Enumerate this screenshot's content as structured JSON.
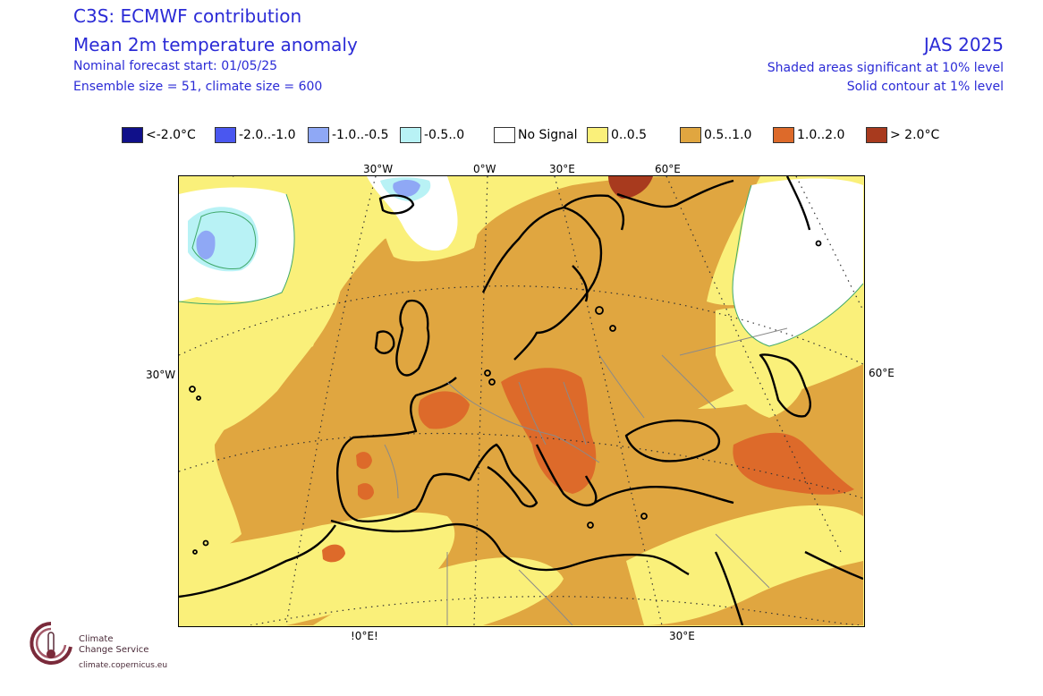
{
  "header": {
    "title": "C3S: ECMWF contribution",
    "subtitle": "Mean 2m temperature anomaly",
    "forecast_start": "Nominal forecast start: 01/05/25",
    "ensemble": "Ensemble size = 51, climate size = 600",
    "period": "JAS 2025",
    "significance_shaded": "Shaded areas significant at 10% level",
    "significance_contour": "Solid contour at 1% level"
  },
  "legend": [
    {
      "label": "<-2.0°C",
      "color": "#10108a"
    },
    {
      "label": "-2.0..-1.0",
      "color": "#4a57f0"
    },
    {
      "label": "-1.0..-0.5",
      "color": "#8fa8f5"
    },
    {
      "label": "-0.5..0",
      "color": "#b8f2f5"
    },
    {
      "label": "No Signal",
      "color": "#ffffff"
    },
    {
      "label": "0..0.5",
      "color": "#faf07a"
    },
    {
      "label": "0.5..1.0",
      "color": "#e0a640"
    },
    {
      "label": "1.0..2.0",
      "color": "#dd6a2a"
    },
    {
      "label": "> 2.0°C",
      "color": "#a83a1e"
    }
  ],
  "axes": {
    "top": [
      "30°W",
      "0°W",
      "30°E",
      "60°E"
    ],
    "left": [
      "30°W"
    ],
    "right": [
      "60°E"
    ],
    "bottom": [
      "!0°E!",
      "30°E"
    ]
  },
  "logo": {
    "line1": "Climate",
    "line2": "Change Service",
    "url": "climate.copernicus.eu"
  },
  "icons": [
    "thermometer-icon"
  ]
}
